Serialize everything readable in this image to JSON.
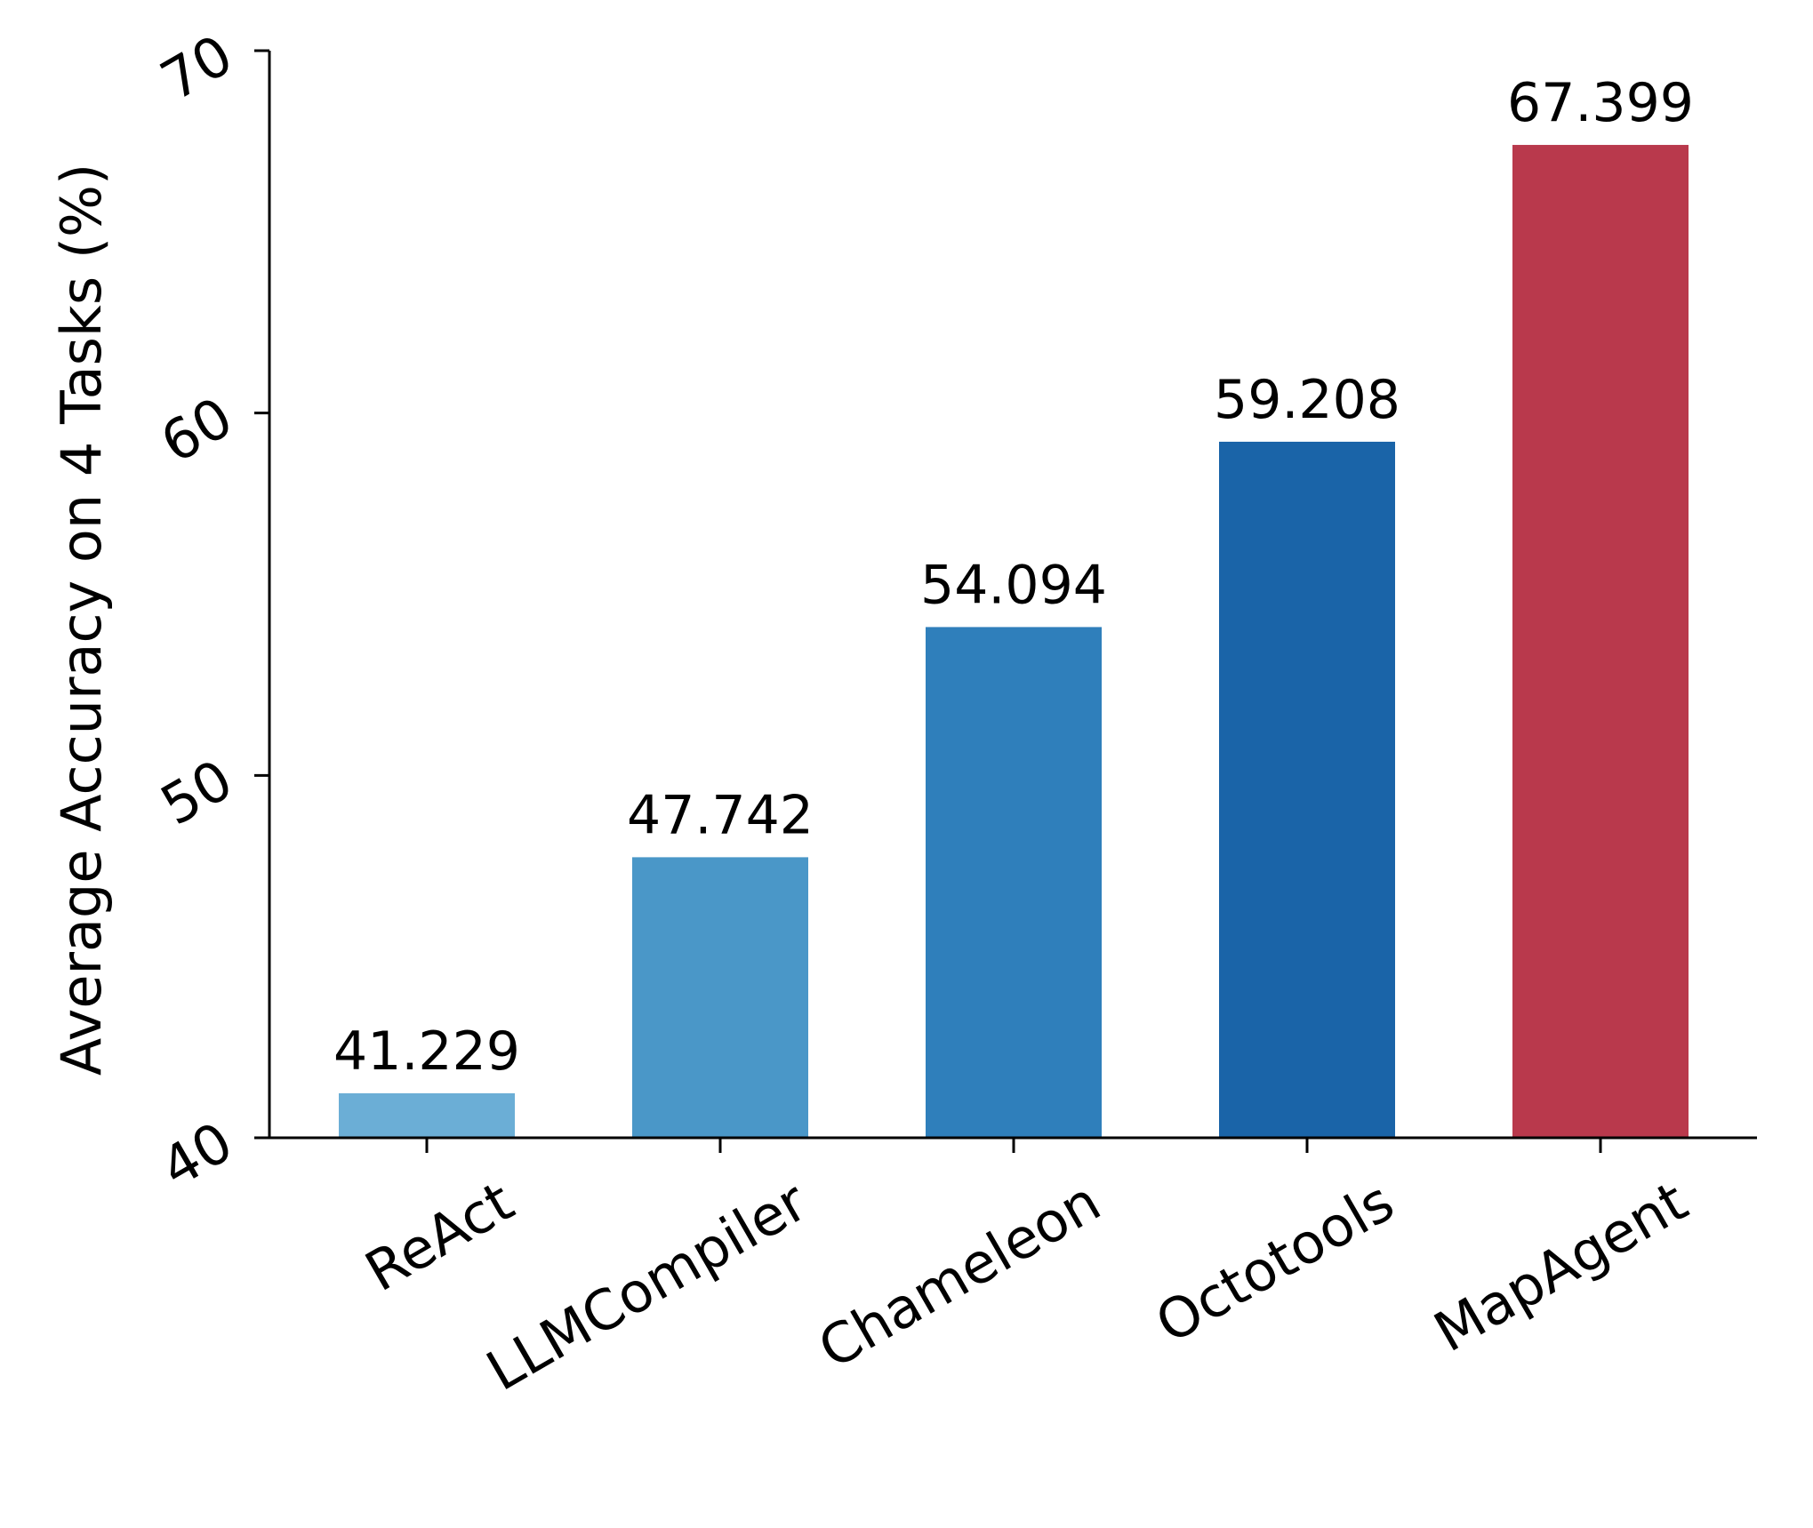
{
  "chart_data": {
    "type": "bar",
    "categories": [
      "ReAct",
      "LLMCompiler",
      "Chameleon",
      "Octotools",
      "MapAgent"
    ],
    "values": [
      41.229,
      47.742,
      54.094,
      59.208,
      67.399
    ],
    "value_labels": [
      "41.229",
      "47.742",
      "54.094",
      "59.208",
      "67.399"
    ],
    "bar_colors": [
      "#6baed6",
      "#4a97c8",
      "#2f7fbb",
      "#1a64a8",
      "#b9394c"
    ],
    "xlabel": "",
    "ylabel": "Average Accuracy on 4 Tasks (%)",
    "ylim": [
      40,
      70
    ],
    "yticks": [
      40,
      50,
      60,
      70
    ],
    "ytick_labels": [
      "40",
      "50",
      "60",
      "70"
    ],
    "grid": false,
    "legend": "none",
    "spines": "left-bottom"
  }
}
